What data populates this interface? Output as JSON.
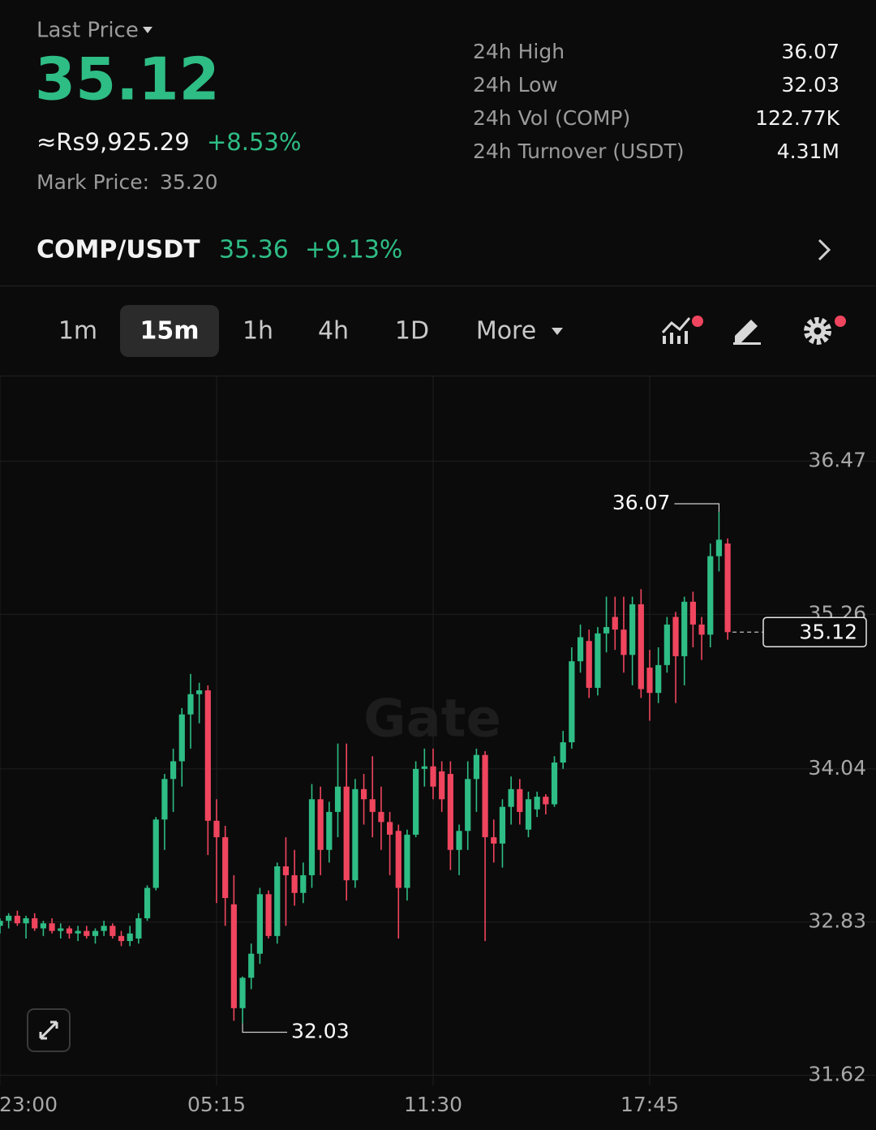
{
  "header": {
    "last_price_label": "Last Price",
    "last_price": "35.12",
    "fiat_price": "≈Rs9,925.29",
    "change": "+8.53%",
    "mark_price_label": "Mark Price:",
    "mark_price": "35.20"
  },
  "stats": [
    {
      "label": "24h High",
      "value": "36.07"
    },
    {
      "label": "24h Low",
      "value": "32.03"
    },
    {
      "label": "24h Vol (COMP)",
      "value": "122.77K"
    },
    {
      "label": "24h Turnover (USDT)",
      "value": "4.31M"
    }
  ],
  "pair": {
    "name": "COMP/USDT",
    "price": "35.36",
    "change": "+9.13%"
  },
  "tabs": [
    "1m",
    "15m",
    "1h",
    "4h",
    "1D",
    "More"
  ],
  "watermark": "Gate",
  "chart_data": {
    "type": "candlestick",
    "up_color": "#2ebd85",
    "down_color": "#f0455e",
    "grid": true,
    "ylim": [
      31.54,
      37.14
    ],
    "yticks": [
      36.47,
      35.26,
      34.04,
      32.83,
      31.62
    ],
    "categories": [
      "23:00",
      null,
      null,
      null,
      null,
      null,
      null,
      null,
      null,
      null,
      null,
      null,
      null,
      null,
      null,
      null,
      null,
      null,
      null,
      null,
      null,
      null,
      null,
      null,
      null,
      "05:15",
      null,
      null,
      null,
      null,
      null,
      null,
      null,
      null,
      null,
      null,
      null,
      null,
      null,
      null,
      null,
      null,
      null,
      null,
      null,
      null,
      null,
      null,
      null,
      null,
      "11:30",
      null,
      null,
      null,
      null,
      null,
      null,
      null,
      null,
      null,
      null,
      null,
      null,
      null,
      null,
      null,
      null,
      null,
      null,
      null,
      null,
      null,
      null,
      null,
      null,
      "17:45",
      null,
      null,
      null,
      null,
      null,
      null,
      null,
      null,
      null
    ],
    "ohlc": [
      [
        32.8,
        32.86,
        32.74,
        32.84
      ],
      [
        32.84,
        32.9,
        32.78,
        32.88
      ],
      [
        32.88,
        32.92,
        32.8,
        32.82
      ],
      [
        32.82,
        32.88,
        32.7,
        32.86
      ],
      [
        32.86,
        32.9,
        32.76,
        32.78
      ],
      [
        32.78,
        32.84,
        32.72,
        32.82
      ],
      [
        32.82,
        32.86,
        32.74,
        32.76
      ],
      [
        32.76,
        32.82,
        32.7,
        32.78
      ],
      [
        32.78,
        32.8,
        32.7,
        32.74
      ],
      [
        32.74,
        32.8,
        32.68,
        32.76
      ],
      [
        32.76,
        32.8,
        32.7,
        32.72
      ],
      [
        32.72,
        32.78,
        32.66,
        32.76
      ],
      [
        32.76,
        32.84,
        32.72,
        32.8
      ],
      [
        32.8,
        32.82,
        32.7,
        32.72
      ],
      [
        32.72,
        32.76,
        32.64,
        32.68
      ],
      [
        32.68,
        32.8,
        32.64,
        32.74
      ],
      [
        32.7,
        32.9,
        32.66,
        32.86
      ],
      [
        32.86,
        33.12,
        32.84,
        33.1
      ],
      [
        33.1,
        33.66,
        33.08,
        33.64
      ],
      [
        33.64,
        34.0,
        33.4,
        33.96
      ],
      [
        33.96,
        34.2,
        33.7,
        34.1
      ],
      [
        34.1,
        34.52,
        33.9,
        34.47
      ],
      [
        34.47,
        34.79,
        34.2,
        34.63
      ],
      [
        34.63,
        34.72,
        34.4,
        34.66
      ],
      [
        34.66,
        34.7,
        33.36,
        33.63
      ],
      [
        33.63,
        33.8,
        32.98,
        33.5
      ],
      [
        33.5,
        33.59,
        32.8,
        33.02
      ],
      [
        32.97,
        33.2,
        32.05,
        32.15
      ],
      [
        32.15,
        32.4,
        32.03,
        32.39
      ],
      [
        32.39,
        32.66,
        32.3,
        32.58
      ],
      [
        32.58,
        33.1,
        32.5,
        33.05
      ],
      [
        33.05,
        33.08,
        32.7,
        32.72
      ],
      [
        32.72,
        33.3,
        32.66,
        33.27
      ],
      [
        33.27,
        33.5,
        32.8,
        33.2
      ],
      [
        33.2,
        33.4,
        32.96,
        33.06
      ],
      [
        33.06,
        33.3,
        32.98,
        33.2
      ],
      [
        33.2,
        33.92,
        33.1,
        33.8
      ],
      [
        33.8,
        33.9,
        33.2,
        33.4
      ],
      [
        33.4,
        33.78,
        33.3,
        33.7
      ],
      [
        33.7,
        34.24,
        33.5,
        33.9
      ],
      [
        33.9,
        34.24,
        33.0,
        33.16
      ],
      [
        33.16,
        33.96,
        33.1,
        33.88
      ],
      [
        33.88,
        34.0,
        33.6,
        33.8
      ],
      [
        33.8,
        34.14,
        33.5,
        33.7
      ],
      [
        33.7,
        33.9,
        33.4,
        33.62
      ],
      [
        33.62,
        33.7,
        33.2,
        33.52
      ],
      [
        33.55,
        33.6,
        32.7,
        33.1
      ],
      [
        33.1,
        33.56,
        33.0,
        33.52
      ],
      [
        33.52,
        34.1,
        33.5,
        34.04
      ],
      [
        34.04,
        34.2,
        33.9,
        34.06
      ],
      [
        34.06,
        34.2,
        33.8,
        33.9
      ],
      [
        34.02,
        34.1,
        33.7,
        33.8
      ],
      [
        34.0,
        34.1,
        33.24,
        33.4
      ],
      [
        33.4,
        33.6,
        33.2,
        33.55
      ],
      [
        33.55,
        34.1,
        33.4,
        33.96
      ],
      [
        33.96,
        34.2,
        33.7,
        34.15
      ],
      [
        34.15,
        34.18,
        32.68,
        33.5
      ],
      [
        33.5,
        33.64,
        33.3,
        33.45
      ],
      [
        33.45,
        33.8,
        33.26,
        33.74
      ],
      [
        33.74,
        33.98,
        33.6,
        33.88
      ],
      [
        33.88,
        33.96,
        33.6,
        33.7
      ],
      [
        33.56,
        33.86,
        33.5,
        33.8
      ],
      [
        33.72,
        33.86,
        33.66,
        33.82
      ],
      [
        33.82,
        33.84,
        33.68,
        33.76
      ],
      [
        33.76,
        34.14,
        33.74,
        34.09
      ],
      [
        34.09,
        34.34,
        34.04,
        34.25
      ],
      [
        34.25,
        35.0,
        34.2,
        34.89
      ],
      [
        34.89,
        35.18,
        34.8,
        35.08
      ],
      [
        35.05,
        35.14,
        34.6,
        34.68
      ],
      [
        34.68,
        35.16,
        34.62,
        35.11
      ],
      [
        35.11,
        35.4,
        34.96,
        35.16
      ],
      [
        35.24,
        35.4,
        34.98,
        35.14
      ],
      [
        35.14,
        35.4,
        34.8,
        34.94
      ],
      [
        34.94,
        35.4,
        34.7,
        35.34
      ],
      [
        35.34,
        35.46,
        34.6,
        34.67
      ],
      [
        34.84,
        34.98,
        34.42,
        34.64
      ],
      [
        34.64,
        35.0,
        34.56,
        34.86
      ],
      [
        34.86,
        35.24,
        34.8,
        35.18
      ],
      [
        35.24,
        35.28,
        34.56,
        34.93
      ],
      [
        34.93,
        35.4,
        34.7,
        35.36
      ],
      [
        35.36,
        35.44,
        35.0,
        35.18
      ],
      [
        35.18,
        35.24,
        34.9,
        35.1
      ],
      [
        35.1,
        35.82,
        35.0,
        35.72
      ],
      [
        35.72,
        36.07,
        35.6,
        35.85
      ],
      [
        35.82,
        35.86,
        35.06,
        35.12
      ]
    ],
    "high_marker": 36.07,
    "low_marker": 32.03,
    "last_price": 35.12
  }
}
